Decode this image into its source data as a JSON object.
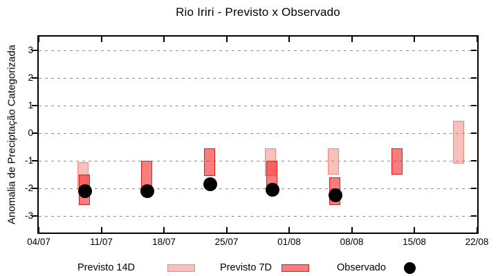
{
  "chart_data": {
    "type": "bar",
    "subtype": "floating-range-bars-with-scatter-markers",
    "title": "Rio Iriri - Previsto x Observado",
    "ylabel": "Anomalia de Preciptação Categorizada",
    "xlabel": "",
    "ylim": [
      -3.6,
      3.5
    ],
    "y_tick_values": [
      3,
      2,
      1,
      0,
      -1,
      -2,
      -3
    ],
    "y_tick_labels": [
      "3",
      "2",
      "1",
      "0",
      "-1",
      "-2",
      "-3"
    ],
    "x_tick_labels": [
      "04/07",
      "11/07",
      "18/07",
      "25/07",
      "01/08",
      "08/08",
      "15/08",
      "22/08"
    ],
    "x_axis_start": "04/07",
    "days_per_tick": 7,
    "grid": "horizontal-dashed",
    "legend_position": "bottom",
    "categories": [
      "09/07",
      "16/07",
      "23/07",
      "30/07",
      "06/08",
      "13/08",
      "20/08"
    ],
    "series": [
      {
        "name": "Previsto 14D",
        "type": "range-bar",
        "ranges_hi_lo": [
          [
            -1.05,
            -2.0
          ],
          null,
          null,
          [
            -0.55,
            -1.55
          ],
          [
            -0.55,
            -1.5
          ],
          null,
          [
            0.45,
            -1.1
          ]
        ]
      },
      {
        "name": "Previsto 7D",
        "type": "range-bar",
        "ranges_hi_lo": [
          [
            -1.5,
            -2.6
          ],
          [
            -1.0,
            -2.05
          ],
          [
            -0.55,
            -1.55
          ],
          [
            -1.0,
            -1.95
          ],
          [
            -1.6,
            -2.6
          ],
          [
            -0.55,
            -1.5
          ],
          null
        ]
      },
      {
        "name": "Observado",
        "type": "scatter",
        "values": [
          -2.1,
          -2.1,
          -1.85,
          -2.05,
          -2.25,
          null,
          null
        ]
      }
    ]
  },
  "legend": {
    "items": [
      {
        "label": "Previsto 14D",
        "swatch": "box-14d"
      },
      {
        "label": "Previsto 7D",
        "swatch": "box-7d"
      },
      {
        "label": "Observado",
        "swatch": "black-dot"
      }
    ]
  },
  "colors": {
    "p14_fill": "rgba(242,116,104,0.45)",
    "p14_border": "#F08878",
    "p7_fill": "rgba(243,32,32,0.58)",
    "p7_border": "#E31A1A",
    "observed": "#000000",
    "grid": "#8C8C8C",
    "axis": "#000000"
  }
}
